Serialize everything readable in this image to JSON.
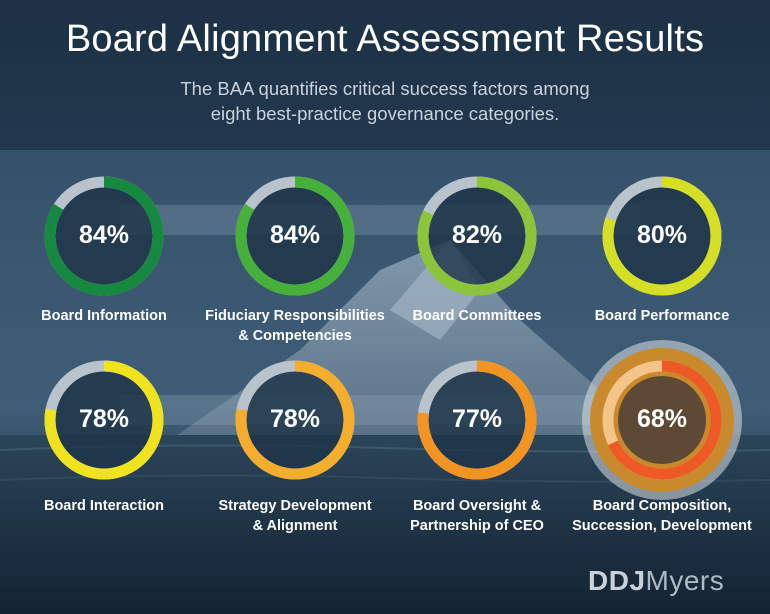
{
  "header": {
    "title": "Board Alignment Assessment Results",
    "subtitle_line1": "The BAA quantifies critical success factors among",
    "subtitle_line2": "eight best-practice governance categories."
  },
  "chart_data": {
    "type": "donut",
    "title": "Board Alignment Assessment Results",
    "unit": "%",
    "items": [
      {
        "label_line1": "Board Information",
        "label_line2": "",
        "value": 84,
        "display": "84%",
        "color": "#17883f"
      },
      {
        "label_line1": "Fiduciary Responsibilities",
        "label_line2": "& Competencies",
        "value": 84,
        "display": "84%",
        "color": "#46b03a"
      },
      {
        "label_line1": "Board Committees",
        "label_line2": "",
        "value": 82,
        "display": "82%",
        "color": "#8cc43c"
      },
      {
        "label_line1": "Board Performance",
        "label_line2": "",
        "value": 80,
        "display": "80%",
        "color": "#d4df25"
      },
      {
        "label_line1": "Board Interaction",
        "label_line2": "",
        "value": 78,
        "display": "78%",
        "color": "#efe21f"
      },
      {
        "label_line1": "Strategy Development",
        "label_line2": "& Alignment",
        "value": 78,
        "display": "78%",
        "color": "#f4ad2c"
      },
      {
        "label_line1": "Board Oversight &",
        "label_line2": "Partnership of CEO",
        "value": 77,
        "display": "77%",
        "color": "#f39422"
      },
      {
        "label_line1": "Board Composition,",
        "label_line2": "Succession, Development",
        "value": 68,
        "display": "68%",
        "color": "#ee5a25",
        "highlight": true
      }
    ],
    "remainder_color": "#b9c3cc"
  },
  "logo": {
    "bold": "DDJ",
    "light": "Myers"
  }
}
